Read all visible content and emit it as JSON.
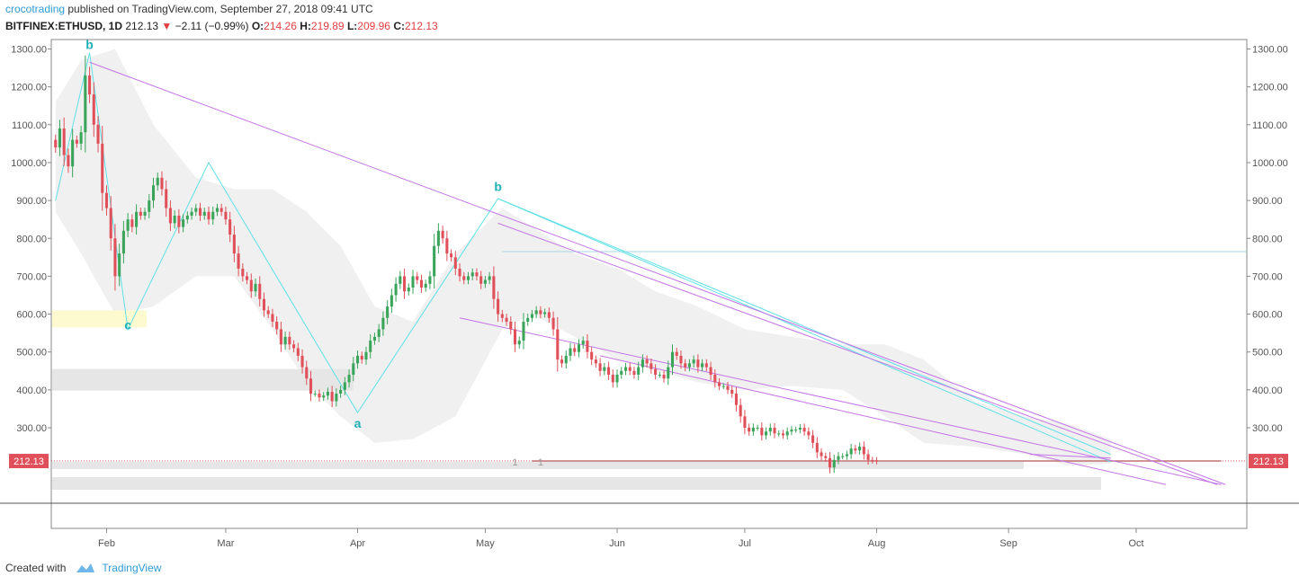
{
  "header": {
    "author": "crocotrading",
    "published_text": " published on TradingView.com, September 27, 2018 09:41 UTC",
    "symbol": "BITFINEX:ETHUSD, 1D",
    "last": "212.13",
    "change": "−2.11 (−0.99%)",
    "open_label": "O:",
    "open": "214.26",
    "high_label": "H:",
    "high": "219.89",
    "low_label": "L:",
    "low": "209.96",
    "close_label": "C:",
    "close": "212.13"
  },
  "footer": {
    "created_with": "Created with",
    "brand": "TradingView"
  },
  "colors": {
    "up": "#3aa55a",
    "down": "#e0505a",
    "channel": "#c474e6",
    "wave": "#5fe0e6",
    "wave_label": "#20b0b8",
    "price_tag": "#e0505a"
  },
  "chart_data": {
    "type": "candlestick",
    "symbol": "ETHUSD",
    "timeframe": "1D",
    "ylim": [
      200,
      1320
    ],
    "y_ticks": [
      300,
      400,
      500,
      600,
      700,
      800,
      900,
      1000,
      1100,
      1200,
      1300
    ],
    "x_ticks": [
      {
        "label": "Feb",
        "date": "2018-02-01"
      },
      {
        "label": "Mar",
        "date": "2018-03-01"
      },
      {
        "label": "Apr",
        "date": "2018-04-01"
      },
      {
        "label": "May",
        "date": "2018-05-01"
      },
      {
        "label": "Jun",
        "date": "2018-06-01"
      },
      {
        "label": "Jul",
        "date": "2018-07-01"
      },
      {
        "label": "Aug",
        "date": "2018-08-01"
      },
      {
        "label": "Sep",
        "date": "2018-09-01"
      },
      {
        "label": "Oct",
        "date": "2018-10-01"
      }
    ],
    "x_start": "2018-01-19",
    "x_end": "2018-10-27",
    "first_bar": "2018-01-20",
    "closes": [
      1040,
      1090,
      1020,
      990,
      1060,
      1050,
      1080,
      1230,
      1180,
      1100,
      1050,
      920,
      880,
      800,
      700,
      760,
      820,
      850,
      830,
      870,
      860,
      870,
      900,
      940,
      960,
      930,
      880,
      840,
      860,
      830,
      850,
      860,
      870,
      880,
      860,
      870,
      850,
      870,
      880,
      870,
      850,
      810,
      760,
      720,
      700,
      690,
      660,
      680,
      640,
      610,
      600,
      580,
      560,
      520,
      540,
      520,
      510,
      490,
      460,
      430,
      390,
      390,
      380,
      385,
      395,
      370,
      390,
      400,
      420,
      440,
      470,
      490,
      480,
      500,
      530,
      540,
      560,
      590,
      620,
      650,
      680,
      700,
      660,
      670,
      700,
      690,
      670,
      680,
      700,
      780,
      820,
      800,
      760,
      750,
      720,
      700,
      690,
      700,
      710,
      700,
      680,
      690,
      700,
      640,
      600,
      590,
      580,
      560,
      520,
      530,
      580,
      590,
      600,
      610,
      600,
      605,
      590,
      560,
      480,
      470,
      490,
      510,
      500,
      520,
      530,
      500,
      480,
      470,
      450,
      460,
      440,
      420,
      440,
      450,
      460,
      450,
      440,
      460,
      480,
      470,
      455,
      440,
      440,
      430,
      460,
      500,
      490,
      470,
      460,
      470,
      480,
      460,
      470,
      460,
      440,
      420,
      410,
      410,
      400,
      390,
      360,
      330,
      300,
      290,
      300,
      300,
      280,
      290,
      300,
      285,
      285,
      280,
      290,
      295,
      295,
      300,
      290,
      280,
      260,
      235,
      225,
      220,
      195,
      215,
      225,
      225,
      230,
      245,
      240,
      250,
      230,
      215,
      214,
      212
    ]
  },
  "levels": {
    "last_price": "212.13",
    "horizontal_ref": 765
  },
  "annotations": [
    {
      "text": "b",
      "date": "2018-01-28",
      "price": 1300
    },
    {
      "text": "c",
      "date": "2018-02-06",
      "price": 560
    },
    {
      "text": "a",
      "date": "2018-04-01",
      "price": 300
    },
    {
      "text": "b",
      "date": "2018-05-04",
      "price": 925
    }
  ],
  "zone_labels": [
    "1",
    "1"
  ]
}
